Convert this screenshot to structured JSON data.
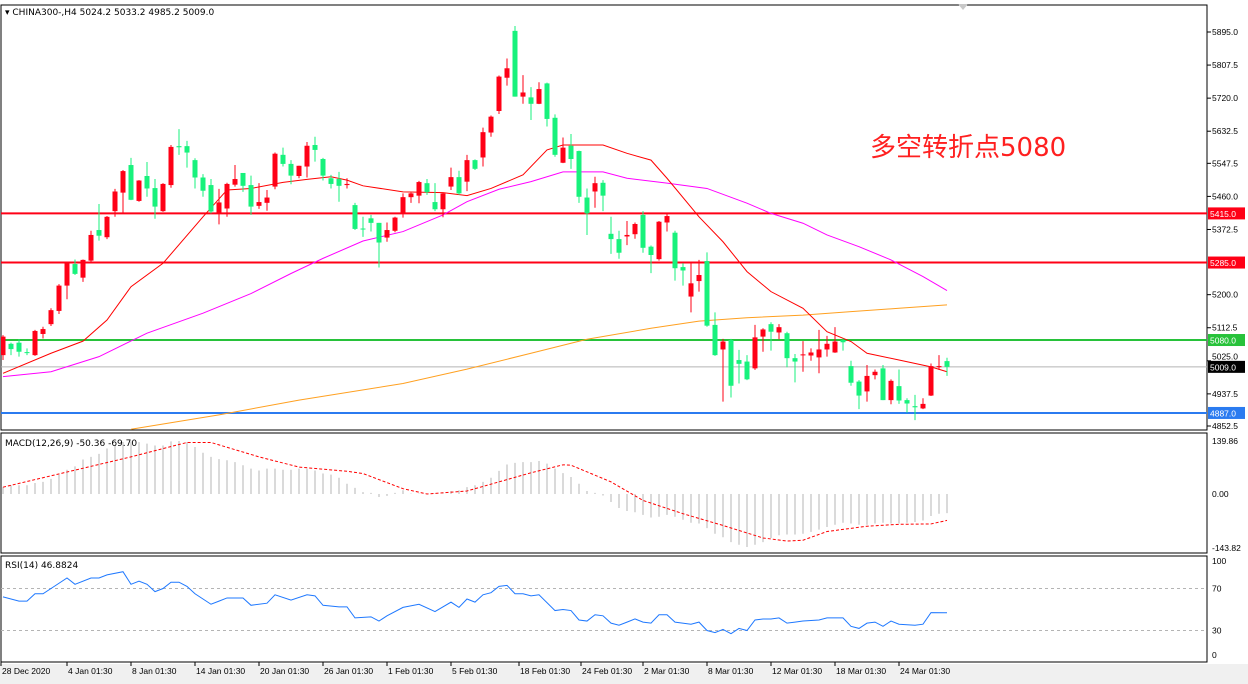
{
  "header": {
    "symbol": "CHINA300-,H4",
    "ohlc": "5024.2 5033.2 4985.2 5009.0"
  },
  "colors": {
    "bull": "#ff0016",
    "bear": "#17f27c",
    "ma_fast": "#ff0000",
    "ma_mid": "#ff00ff",
    "ma_slow": "#ffa020",
    "resistance": "#ff0016",
    "pivot": "#27c23a",
    "support": "#2b7bf0",
    "bid": "#000000",
    "macd_hist": "#b4b4b4",
    "macd_signal": "#ff0000",
    "rsi": "#1e78ff"
  },
  "annotation": "多空转折点5080",
  "price_axis": {
    "ticks": [
      "5895.0",
      "5807.5",
      "5720.0",
      "5632.5",
      "5547.5",
      "5460.0",
      "5372.5",
      "5200.0",
      "5112.5",
      "5025.0",
      "4937.5",
      "4852.5"
    ],
    "range": [
      4852.5,
      5895.0
    ]
  },
  "levels": [
    {
      "price": 5415.0,
      "label": "5415.0",
      "kind": "resistance"
    },
    {
      "price": 5285.0,
      "label": "5285.0",
      "kind": "resistance"
    },
    {
      "price": 5080.0,
      "label": "5080.0",
      "kind": "pivot"
    },
    {
      "price": 4887.0,
      "label": "4887.0",
      "kind": "support"
    }
  ],
  "bid": {
    "price": 5009.0,
    "label": "5009.0"
  },
  "time_axis": [
    "28 Dec 2020",
    "4 Jan 01:30",
    "8 Jan 01:30",
    "14 Jan 01:30",
    "20 Jan 01:30",
    "26 Jan 01:30",
    "1 Feb 01:30",
    "5 Feb 01:30",
    "18 Feb 01:30",
    "24 Feb 01:30",
    "2 Mar 01:30",
    "8 Mar 01:30",
    "12 Mar 01:30",
    "18 Mar 01:30",
    "24 Mar 01:30"
  ],
  "candles": [
    [
      5040,
      5093,
      5027,
      5089
    ],
    [
      5070,
      5073,
      5040,
      5056
    ],
    [
      5073,
      5082,
      5036,
      5049
    ],
    [
      5048,
      5058,
      5040,
      5047
    ],
    [
      5040,
      5107,
      5038,
      5104
    ],
    [
      5096,
      5115,
      5084,
      5109
    ],
    [
      5122,
      5164,
      5117,
      5159
    ],
    [
      5157,
      5228,
      5149,
      5224
    ],
    [
      5224,
      5287,
      5188,
      5283
    ],
    [
      5281,
      5293,
      5252,
      5255
    ],
    [
      5245,
      5293,
      5234,
      5292
    ],
    [
      5290,
      5369,
      5287,
      5358
    ],
    [
      5371,
      5440,
      5343,
      5356
    ],
    [
      5352,
      5408,
      5347,
      5406
    ],
    [
      5421,
      5480,
      5406,
      5473
    ],
    [
      5470,
      5530,
      5415,
      5527
    ],
    [
      5543,
      5562,
      5450,
      5451
    ],
    [
      5448,
      5503,
      5446,
      5502
    ],
    [
      5514,
      5551,
      5459,
      5481
    ],
    [
      5482,
      5506,
      5401,
      5433
    ],
    [
      5421,
      5495,
      5419,
      5493
    ],
    [
      5490,
      5596,
      5483,
      5591
    ],
    [
      5593,
      5638,
      5570,
      5590
    ],
    [
      5593,
      5607,
      5536,
      5576
    ],
    [
      5556,
      5561,
      5481,
      5510
    ],
    [
      5510,
      5519,
      5459,
      5475
    ],
    [
      5490,
      5506,
      5415,
      5420
    ],
    [
      5415,
      5480,
      5386,
      5444
    ],
    [
      5428,
      5496,
      5406,
      5493
    ],
    [
      5491,
      5543,
      5486,
      5506
    ],
    [
      5522,
      5522,
      5472,
      5488
    ],
    [
      5490,
      5515,
      5411,
      5433
    ],
    [
      5435,
      5495,
      5427,
      5445
    ],
    [
      5443,
      5477,
      5422,
      5457
    ],
    [
      5486,
      5576,
      5479,
      5573
    ],
    [
      5570,
      5589,
      5539,
      5546
    ],
    [
      5546,
      5556,
      5492,
      5515
    ],
    [
      5514,
      5541,
      5508,
      5541
    ],
    [
      5539,
      5604,
      5510,
      5594
    ],
    [
      5596,
      5618,
      5552,
      5583
    ],
    [
      5559,
      5562,
      5502,
      5515
    ],
    [
      5508,
      5517,
      5481,
      5493
    ],
    [
      5506,
      5525,
      5446,
      5488
    ],
    [
      5490,
      5508,
      5481,
      5493
    ],
    [
      5437,
      5443,
      5371,
      5374
    ],
    [
      5375,
      5406,
      5353,
      5373
    ],
    [
      5402,
      5411,
      5367,
      5390
    ],
    [
      5390,
      5390,
      5272,
      5338
    ],
    [
      5351,
      5391,
      5340,
      5371
    ],
    [
      5369,
      5406,
      5365,
      5404
    ],
    [
      5415,
      5468,
      5404,
      5458
    ],
    [
      5458,
      5470,
      5443,
      5468
    ],
    [
      5462,
      5501,
      5442,
      5498
    ],
    [
      5495,
      5506,
      5464,
      5471
    ],
    [
      5445,
      5495,
      5421,
      5426
    ],
    [
      5426,
      5470,
      5405,
      5468
    ],
    [
      5486,
      5536,
      5477,
      5511
    ],
    [
      5511,
      5528,
      5464,
      5468
    ],
    [
      5499,
      5570,
      5474,
      5556
    ],
    [
      5556,
      5558,
      5530,
      5533
    ],
    [
      5563,
      5642,
      5539,
      5630
    ],
    [
      5629,
      5674,
      5618,
      5671
    ],
    [
      5686,
      5780,
      5678,
      5777
    ],
    [
      5774,
      5825,
      5753,
      5799
    ],
    [
      5898,
      5911,
      5724,
      5724
    ],
    [
      5724,
      5781,
      5705,
      5735
    ],
    [
      5722,
      5749,
      5662,
      5705
    ],
    [
      5705,
      5762,
      5704,
      5744
    ],
    [
      5759,
      5761,
      5645,
      5665
    ],
    [
      5668,
      5677,
      5565,
      5570
    ],
    [
      5549,
      5616,
      5548,
      5589
    ],
    [
      5594,
      5625,
      5533,
      5559
    ],
    [
      5580,
      5581,
      5443,
      5459
    ],
    [
      5457,
      5481,
      5358,
      5415
    ],
    [
      5473,
      5512,
      5430,
      5495
    ],
    [
      5496,
      5503,
      5421,
      5462
    ],
    [
      5361,
      5406,
      5308,
      5347
    ],
    [
      5347,
      5369,
      5295,
      5311
    ],
    [
      5354,
      5395,
      5331,
      5358
    ],
    [
      5360,
      5391,
      5348,
      5387
    ],
    [
      5411,
      5421,
      5311,
      5324
    ],
    [
      5327,
      5330,
      5257,
      5305
    ],
    [
      5294,
      5395,
      5290,
      5393
    ],
    [
      5391,
      5415,
      5367,
      5408
    ],
    [
      5364,
      5369,
      5237,
      5270
    ],
    [
      5273,
      5283,
      5224,
      5264
    ],
    [
      5195,
      5285,
      5153,
      5230
    ],
    [
      5236,
      5292,
      5208,
      5252
    ],
    [
      5289,
      5312,
      5115,
      5118
    ],
    [
      5120,
      5153,
      5038,
      5040
    ],
    [
      5055,
      5083,
      4917,
      5076
    ],
    [
      5080,
      5083,
      4928,
      4959
    ],
    [
      5027,
      5054,
      4965,
      5017
    ],
    [
      5023,
      5040,
      4974,
      4976
    ],
    [
      5005,
      5120,
      5001,
      5087
    ],
    [
      5089,
      5111,
      5049,
      5108
    ],
    [
      5122,
      5127,
      5052,
      5102
    ],
    [
      5100,
      5122,
      5082,
      5114
    ],
    [
      5098,
      5102,
      5008,
      5032
    ],
    [
      5032,
      5043,
      4968,
      5023
    ],
    [
      5040,
      5077,
      4996,
      5042
    ],
    [
      5039,
      5058,
      5025,
      5047
    ],
    [
      5034,
      5107,
      4992,
      5055
    ],
    [
      5055,
      5091,
      5036,
      5070
    ],
    [
      5047,
      5114,
      5046,
      5076
    ],
    [
      5080,
      5084,
      5052,
      5074
    ],
    [
      5011,
      5025,
      4959,
      4967
    ],
    [
      4970,
      4974,
      4897,
      4933
    ],
    [
      4944,
      5014,
      4917,
      4985
    ],
    [
      4987,
      5002,
      4976,
      4996
    ],
    [
      5005,
      5014,
      4921,
      4921
    ],
    [
      4921,
      4976,
      4910,
      4972
    ],
    [
      4958,
      5002,
      4911,
      4920
    ],
    [
      4921,
      4926,
      4888,
      4912
    ],
    [
      4905,
      4935,
      4868,
      4902
    ],
    [
      4899,
      4926,
      4897,
      4911
    ],
    [
      4933,
      5018,
      4932,
      5011
    ],
    [
      5008,
      5040,
      5001,
      5011
    ],
    [
      5024.2,
      5033.2,
      4985.2,
      5009.0
    ]
  ],
  "moving_averages": {
    "fast": [
      [
        0,
        4992
      ],
      [
        6,
        5045
      ],
      [
        10,
        5077
      ],
      [
        13,
        5133
      ],
      [
        16,
        5221
      ],
      [
        20,
        5283
      ],
      [
        25,
        5406
      ],
      [
        28,
        5477
      ],
      [
        31,
        5481
      ],
      [
        35,
        5497
      ],
      [
        38,
        5505
      ],
      [
        41,
        5512
      ],
      [
        43,
        5503
      ],
      [
        45,
        5488
      ],
      [
        50,
        5472
      ],
      [
        55,
        5470
      ],
      [
        58,
        5462
      ],
      [
        61,
        5481
      ],
      [
        65,
        5517
      ],
      [
        68,
        5583
      ],
      [
        70,
        5596
      ],
      [
        75,
        5596
      ],
      [
        78,
        5574
      ],
      [
        81,
        5556
      ],
      [
        83,
        5508
      ],
      [
        87,
        5406
      ],
      [
        90,
        5340
      ],
      [
        93,
        5261
      ],
      [
        96,
        5208
      ],
      [
        100,
        5164
      ],
      [
        103,
        5102
      ],
      [
        106,
        5076
      ],
      [
        108,
        5045
      ],
      [
        112,
        5027
      ],
      [
        116,
        5009
      ],
      [
        118,
        4996
      ]
    ],
    "mid": [
      [
        0,
        4983
      ],
      [
        6,
        4996
      ],
      [
        12,
        5036
      ],
      [
        18,
        5098
      ],
      [
        25,
        5151
      ],
      [
        31,
        5203
      ],
      [
        36,
        5256
      ],
      [
        40,
        5296
      ],
      [
        45,
        5342
      ],
      [
        50,
        5367
      ],
      [
        55,
        5411
      ],
      [
        58,
        5446
      ],
      [
        62,
        5479
      ],
      [
        66,
        5499
      ],
      [
        70,
        5525
      ],
      [
        75,
        5525
      ],
      [
        78,
        5508
      ],
      [
        83,
        5495
      ],
      [
        88,
        5481
      ],
      [
        93,
        5442
      ],
      [
        96,
        5415
      ],
      [
        100,
        5389
      ],
      [
        103,
        5358
      ],
      [
        107,
        5327
      ],
      [
        111,
        5292
      ],
      [
        115,
        5248
      ],
      [
        118,
        5211
      ]
    ],
    "slow": [
      [
        16,
        4844
      ],
      [
        27,
        4882
      ],
      [
        37,
        4921
      ],
      [
        50,
        4965
      ],
      [
        58,
        5003
      ],
      [
        66,
        5045
      ],
      [
        73,
        5082
      ],
      [
        81,
        5111
      ],
      [
        87,
        5130
      ],
      [
        93,
        5139
      ],
      [
        100,
        5146
      ],
      [
        106,
        5155
      ],
      [
        112,
        5164
      ],
      [
        118,
        5173
      ]
    ]
  },
  "macd": {
    "label": "MACD(12,26,9) -50.36 -69.70",
    "ticks": [
      "139.86",
      "0.00",
      "-143.82"
    ],
    "range": [
      -143.82,
      139.86
    ],
    "histogram": [
      18,
      23,
      23,
      23,
      29,
      32,
      40,
      51,
      64,
      73,
      91,
      98,
      106,
      120,
      128,
      137,
      139,
      137,
      133,
      128,
      128,
      139,
      140,
      137,
      124,
      109,
      98,
      92,
      89,
      84,
      76,
      67,
      62,
      67,
      67,
      64,
      64,
      67,
      67,
      62,
      54,
      51,
      43,
      27,
      16,
      5,
      3,
      -8,
      -5,
      3,
      10,
      1,
      1,
      1,
      1,
      1,
      8,
      10,
      18,
      23,
      32,
      43,
      61,
      78,
      82,
      84,
      84,
      87,
      80,
      67,
      55,
      45,
      27,
      8,
      3,
      -4,
      -21,
      -37,
      -45,
      -48,
      -55,
      -62,
      -60,
      -55,
      -60,
      -68,
      -76,
      -78,
      -90,
      -105,
      -114,
      -127,
      -134,
      -140,
      -134,
      -127,
      -116,
      -109,
      -107,
      -107,
      -105,
      -100,
      -94,
      -87,
      -81,
      -76,
      -78,
      -81,
      -81,
      -78,
      -76,
      -78,
      -78,
      -76,
      -74,
      -70,
      -58,
      -52,
      -50.36
    ],
    "signal": [
      [
        0,
        18
      ],
      [
        16,
        98
      ],
      [
        23,
        136
      ],
      [
        26,
        136
      ],
      [
        32,
        98
      ],
      [
        37,
        71
      ],
      [
        43,
        60
      ],
      [
        45,
        54
      ],
      [
        50,
        14
      ],
      [
        53,
        0
      ],
      [
        58,
        8
      ],
      [
        66,
        56
      ],
      [
        70,
        77
      ],
      [
        71,
        76
      ],
      [
        76,
        32
      ],
      [
        80,
        -17
      ],
      [
        85,
        -52
      ],
      [
        90,
        -83
      ],
      [
        95,
        -116
      ],
      [
        98,
        -124
      ],
      [
        100,
        -122
      ],
      [
        103,
        -99
      ],
      [
        108,
        -85
      ],
      [
        112,
        -80
      ],
      [
        116,
        -79
      ],
      [
        118,
        -69.7
      ]
    ]
  },
  "rsi": {
    "label": "RSI(14) 46.8824",
    "ticks": [
      "100",
      "70",
      "30",
      "0"
    ],
    "levels": [
      70,
      30
    ],
    "points": [
      [
        0,
        62
      ],
      [
        2,
        58
      ],
      [
        3,
        58
      ],
      [
        4,
        65
      ],
      [
        5,
        65
      ],
      [
        7,
        75
      ],
      [
        8,
        80
      ],
      [
        9,
        74
      ],
      [
        11,
        80
      ],
      [
        12,
        80
      ],
      [
        13,
        83
      ],
      [
        15,
        86
      ],
      [
        16,
        74
      ],
      [
        17,
        77
      ],
      [
        18,
        74
      ],
      [
        19,
        67
      ],
      [
        20,
        70
      ],
      [
        21,
        76
      ],
      [
        22,
        76
      ],
      [
        23,
        72
      ],
      [
        24,
        65
      ],
      [
        26,
        55
      ],
      [
        27,
        58
      ],
      [
        28,
        61
      ],
      [
        30,
        61
      ],
      [
        31,
        54
      ],
      [
        33,
        56
      ],
      [
        34,
        64
      ],
      [
        36,
        59
      ],
      [
        38,
        64
      ],
      [
        39,
        63
      ],
      [
        40,
        54
      ],
      [
        42,
        52.5
      ],
      [
        43,
        52.5
      ],
      [
        44,
        42
      ],
      [
        46,
        43
      ],
      [
        47,
        39
      ],
      [
        48,
        44
      ],
      [
        50,
        52
      ],
      [
        52,
        55
      ],
      [
        54,
        48
      ],
      [
        56,
        57
      ],
      [
        57,
        52
      ],
      [
        58,
        60
      ],
      [
        59,
        57
      ],
      [
        60,
        64
      ],
      [
        61,
        66
      ],
      [
        62,
        72
      ],
      [
        63,
        73
      ],
      [
        64,
        65
      ],
      [
        65,
        65
      ],
      [
        66,
        63
      ],
      [
        67,
        64
      ],
      [
        69,
        49
      ],
      [
        70,
        50
      ],
      [
        71,
        49
      ],
      [
        72,
        40
      ],
      [
        73,
        39
      ],
      [
        74,
        45
      ],
      [
        75,
        44
      ],
      [
        76,
        37
      ],
      [
        77,
        35
      ],
      [
        78,
        38
      ],
      [
        79,
        41
      ],
      [
        80,
        38
      ],
      [
        81,
        37
      ],
      [
        82,
        45
      ],
      [
        83,
        45
      ],
      [
        84,
        38
      ],
      [
        86,
        36
      ],
      [
        87,
        38
      ],
      [
        88,
        30
      ],
      [
        89,
        28
      ],
      [
        90,
        31
      ],
      [
        91,
        27
      ],
      [
        92,
        32
      ],
      [
        93,
        30
      ],
      [
        94,
        40
      ],
      [
        95,
        41
      ],
      [
        96,
        41
      ],
      [
        97,
        42
      ],
      [
        98,
        37
      ],
      [
        99,
        38
      ],
      [
        100,
        39
      ],
      [
        102,
        40
      ],
      [
        103,
        42
      ],
      [
        105,
        42
      ],
      [
        106,
        34
      ],
      [
        107,
        32
      ],
      [
        108,
        37
      ],
      [
        109,
        38
      ],
      [
        110,
        34
      ],
      [
        111,
        39
      ],
      [
        112,
        36
      ],
      [
        114,
        35
      ],
      [
        115,
        36
      ],
      [
        116,
        47
      ],
      [
        118,
        46.88
      ]
    ]
  }
}
